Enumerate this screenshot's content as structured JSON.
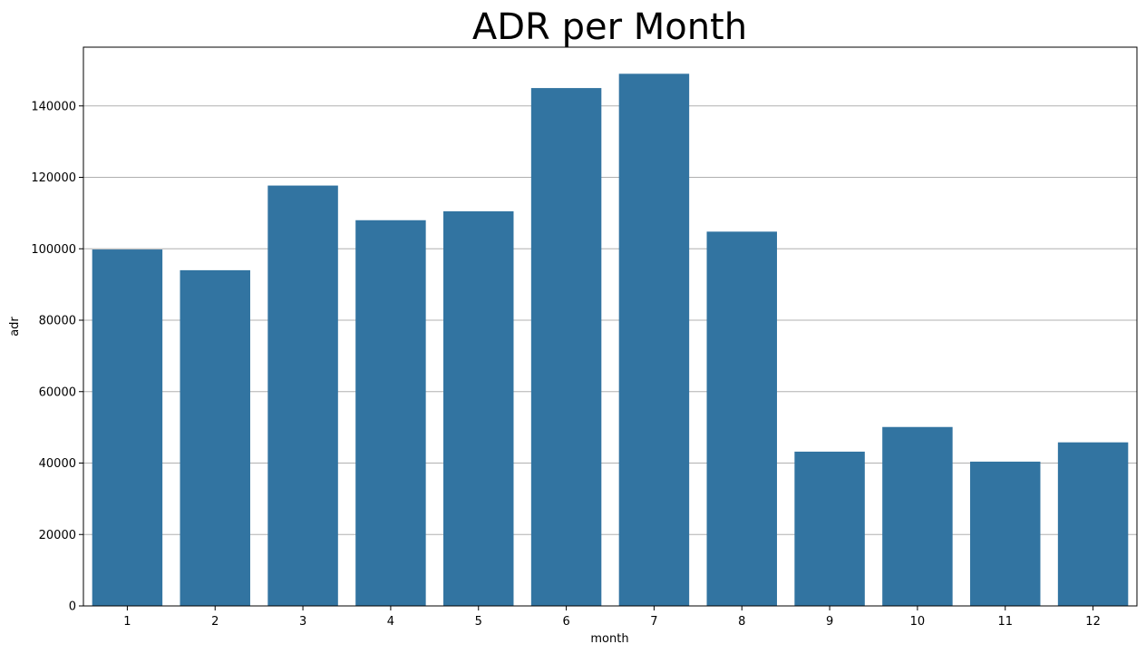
{
  "chart_data": {
    "type": "bar",
    "title": "ADR per Month",
    "xlabel": "month",
    "ylabel": "adr",
    "categories": [
      "1",
      "2",
      "3",
      "4",
      "5",
      "6",
      "7",
      "8",
      "9",
      "10",
      "11",
      "12"
    ],
    "values": [
      99800,
      94000,
      117700,
      108000,
      110500,
      145000,
      149000,
      104800,
      43200,
      50100,
      40400,
      45800
    ],
    "yticks": [
      0,
      20000,
      40000,
      60000,
      80000,
      100000,
      120000,
      140000
    ],
    "ytick_labels": [
      "0",
      "20000",
      "40000",
      "60000",
      "80000",
      "100000",
      "120000",
      "140000"
    ],
    "ylim": [
      0,
      156450
    ],
    "grid": "y-axis",
    "bar_color": "#3274a1",
    "grid_color": "#b0b0b0"
  }
}
